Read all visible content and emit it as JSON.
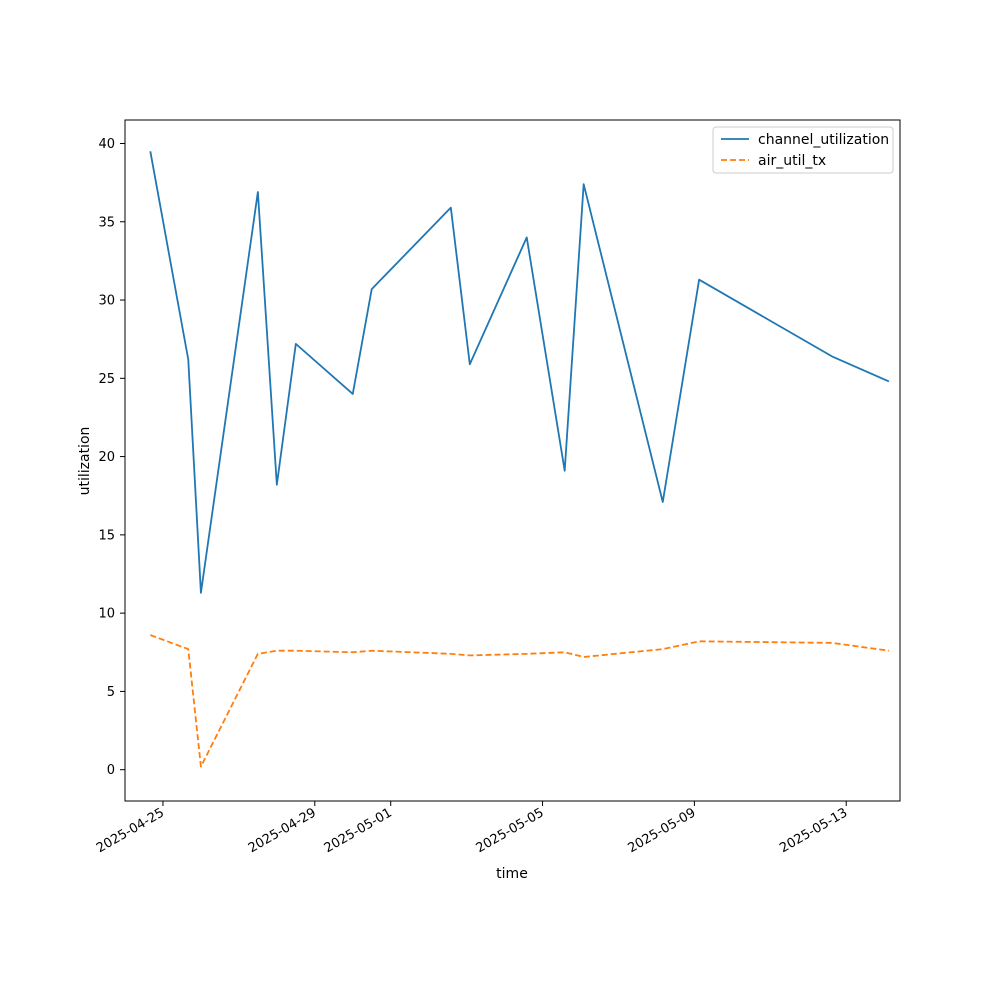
{
  "chart_data": {
    "type": "line",
    "title": "",
    "xlabel": "time",
    "ylabel": "utilization",
    "x_axis_type": "date",
    "xlim": [
      "2025-04-24T00:00",
      "2025-05-14T10:00"
    ],
    "ylim": [
      -2,
      41.5
    ],
    "grid": false,
    "legend_placement": "top-right",
    "x_ticks": [
      {
        "value": "2025-04-25",
        "label": "2025-04-25"
      },
      {
        "value": "2025-04-29",
        "label": "2025-04-29"
      },
      {
        "value": "2025-05-01",
        "label": "2025-05-01"
      },
      {
        "value": "2025-05-05",
        "label": "2025-05-05"
      },
      {
        "value": "2025-05-09",
        "label": "2025-05-09"
      },
      {
        "value": "2025-05-13",
        "label": "2025-05-13"
      }
    ],
    "y_ticks": [
      {
        "value": 0,
        "label": "0"
      },
      {
        "value": 5,
        "label": "5"
      },
      {
        "value": 10,
        "label": "10"
      },
      {
        "value": 15,
        "label": "15"
      },
      {
        "value": 20,
        "label": "20"
      },
      {
        "value": 25,
        "label": "25"
      },
      {
        "value": 30,
        "label": "30"
      },
      {
        "value": 35,
        "label": "35"
      },
      {
        "value": 40,
        "label": "40"
      }
    ],
    "x": [
      "2025-04-24T16:00",
      "2025-04-25T16:00",
      "2025-04-26T00:00",
      "2025-04-27T12:00",
      "2025-04-28T00:00",
      "2025-04-28T12:00",
      "2025-04-30T00:00",
      "2025-04-30T12:00",
      "2025-05-02T14:00",
      "2025-05-03T02:00",
      "2025-05-04T14:00",
      "2025-05-05T14:00",
      "2025-05-06T02:00",
      "2025-05-08T04:00",
      "2025-05-09T03:00",
      "2025-05-12T15:00",
      "2025-05-14T03:00"
    ],
    "series": [
      {
        "name": "channel_utilization",
        "color": "#1f77b4",
        "dash": "solid",
        "values": [
          39.5,
          26.2,
          11.3,
          36.9,
          18.2,
          27.2,
          24.0,
          30.7,
          35.9,
          25.9,
          34.0,
          19.1,
          37.4,
          17.1,
          31.3,
          26.4,
          24.8
        ]
      },
      {
        "name": "air_util_tx",
        "color": "#ff7f0e",
        "dash": "dashed",
        "values": [
          8.6,
          7.7,
          0.2,
          7.4,
          7.6,
          7.6,
          7.5,
          7.6,
          7.4,
          7.3,
          7.4,
          7.5,
          7.2,
          7.7,
          8.2,
          8.1,
          7.6
        ]
      }
    ]
  }
}
